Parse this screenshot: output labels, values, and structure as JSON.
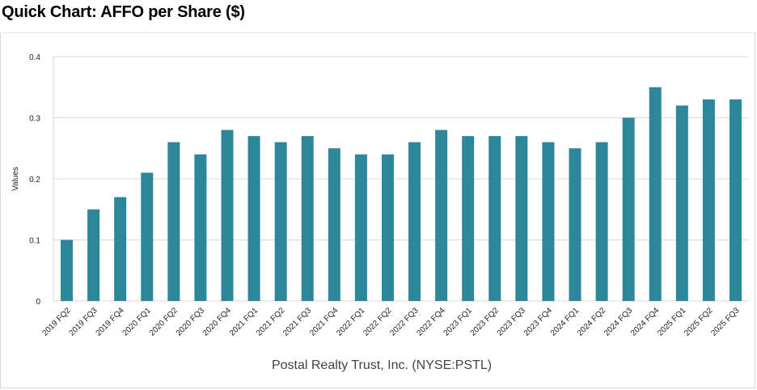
{
  "page": {
    "title": "Quick Chart: AFFO per Share ($)"
  },
  "chart_data": {
    "type": "bar",
    "title": "Quick Chart: AFFO per Share ($)",
    "xlabel": "Postal Realty Trust, Inc. (NYSE:PSTL)",
    "ylabel": "Values",
    "ylim": [
      0,
      0.4
    ],
    "yticks": [
      0,
      0.1,
      0.2,
      0.3,
      0.4
    ],
    "ytick_labels": [
      "0",
      "0.1",
      "0.2",
      "0.3",
      "0.4"
    ],
    "grid": true,
    "color": "#2b8799",
    "categories": [
      "2019 FQ2",
      "2019 FQ3",
      "2019 FQ4",
      "2020 FQ1",
      "2020 FQ2",
      "2020 FQ3",
      "2020 FQ4",
      "2021 FQ1",
      "2021 FQ2",
      "2021 FQ3",
      "2021 FQ4",
      "2022 FQ1",
      "2022 FQ2",
      "2022 FQ3",
      "2022 FQ4",
      "2023 FQ1",
      "2023 FQ2",
      "2023 FQ3",
      "2023 FQ4",
      "2024 FQ1",
      "2024 FQ2",
      "2024 FQ3",
      "2024 FQ4",
      "2025 FQ1",
      "2025 FQ2",
      "2025 FQ3"
    ],
    "values": [
      0.1,
      0.15,
      0.17,
      0.21,
      0.26,
      0.24,
      0.28,
      0.27,
      0.26,
      0.27,
      0.25,
      0.24,
      0.24,
      0.26,
      0.28,
      0.27,
      0.27,
      0.27,
      0.26,
      0.25,
      0.26,
      0.3,
      0.35,
      0.32,
      0.33,
      0.33
    ]
  }
}
